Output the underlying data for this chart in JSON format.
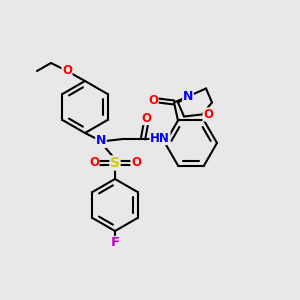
{
  "bg_color": "#e8e8e8",
  "bond_color": "#000000",
  "atom_colors": {
    "N": "#0000ff",
    "O": "#ff0000",
    "S": "#cccc00",
    "F": "#cc00cc",
    "H": "#008080",
    "C": "#000000"
  },
  "figsize": [
    3.0,
    3.0
  ],
  "dpi": 100
}
